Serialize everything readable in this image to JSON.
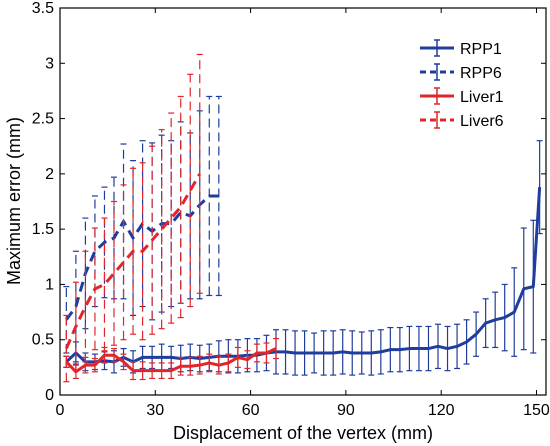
{
  "chart_data": {
    "type": "line",
    "xlabel": "Displacement of the vertex (mm)",
    "ylabel": "Maximum error (mm)",
    "xlim": [
      0,
      153
    ],
    "ylim": [
      0,
      3.5
    ],
    "xticks": [
      0,
      30,
      60,
      90,
      120,
      150
    ],
    "yticks": [
      0,
      0.5,
      1,
      1.5,
      2,
      2.5,
      3,
      3.5
    ],
    "xtick_labels": [
      "0",
      "30",
      "60",
      "90",
      "120",
      "150"
    ],
    "ytick_labels": [
      "0",
      "0.5",
      "1",
      "1.5",
      "2",
      "2.5",
      "3",
      "3.5"
    ],
    "grid": false,
    "legend_position": "top-right",
    "series": [
      {
        "name": "RPP1",
        "color": "#1f3d9c",
        "dash": "solid",
        "x": [
          2,
          5,
          8,
          11,
          14,
          17,
          20,
          23,
          26,
          29,
          32,
          35,
          38,
          41,
          44,
          47,
          50,
          53,
          56,
          59,
          62,
          65,
          68,
          71,
          74,
          77,
          80,
          83,
          86,
          89,
          92,
          95,
          98,
          101,
          104,
          107,
          110,
          113,
          116,
          119,
          122,
          125,
          128,
          131,
          134,
          137,
          140,
          143,
          146,
          149,
          151
        ],
        "y": [
          0.3,
          0.38,
          0.3,
          0.3,
          0.31,
          0.3,
          0.34,
          0.3,
          0.34,
          0.34,
          0.34,
          0.34,
          0.33,
          0.34,
          0.33,
          0.34,
          0.35,
          0.35,
          0.35,
          0.36,
          0.36,
          0.38,
          0.39,
          0.39,
          0.38,
          0.38,
          0.38,
          0.38,
          0.38,
          0.39,
          0.38,
          0.38,
          0.38,
          0.39,
          0.41,
          0.41,
          0.42,
          0.42,
          0.42,
          0.44,
          0.42,
          0.44,
          0.48,
          0.55,
          0.65,
          0.68,
          0.7,
          0.75,
          0.96,
          0.98,
          1.88
        ],
        "err": [
          0.05,
          0.1,
          0.08,
          0.07,
          0.08,
          0.1,
          0.08,
          0.1,
          0.1,
          0.1,
          0.12,
          0.1,
          0.12,
          0.12,
          0.12,
          0.12,
          0.14,
          0.15,
          0.15,
          0.15,
          0.15,
          0.16,
          0.2,
          0.2,
          0.2,
          0.2,
          0.18,
          0.2,
          0.2,
          0.2,
          0.2,
          0.19,
          0.2,
          0.2,
          0.2,
          0.2,
          0.2,
          0.2,
          0.2,
          0.2,
          0.2,
          0.2,
          0.2,
          0.2,
          0.22,
          0.25,
          0.3,
          0.4,
          0.55,
          0.6,
          0.42
        ]
      },
      {
        "name": "RPP6",
        "color": "#1f3d9c",
        "dash": "dashed",
        "x": [
          2,
          5,
          8,
          11,
          14,
          17,
          20,
          23,
          26,
          29,
          32,
          35,
          38,
          41,
          44,
          47,
          50
        ],
        "y": [
          0.68,
          0.8,
          1.1,
          1.3,
          1.38,
          1.42,
          1.57,
          1.42,
          1.55,
          1.48,
          1.55,
          1.55,
          1.65,
          1.62,
          1.72,
          1.8,
          1.8
        ],
        "err": [
          0.3,
          0.5,
          0.5,
          0.5,
          0.5,
          0.55,
          0.7,
          0.7,
          0.75,
          0.8,
          0.8,
          0.75,
          0.82,
          0.75,
          0.85,
          0.9,
          0.9
        ]
      },
      {
        "name": "Liver1",
        "color": "#e0262a",
        "dash": "solid",
        "x": [
          2,
          5,
          8,
          11,
          14,
          17,
          20,
          23,
          26,
          29,
          32,
          35,
          38,
          41,
          44,
          47,
          50,
          53,
          56,
          59,
          62,
          65,
          68
        ],
        "y": [
          0.3,
          0.21,
          0.27,
          0.27,
          0.36,
          0.36,
          0.3,
          0.22,
          0.22,
          0.22,
          0.22,
          0.22,
          0.26,
          0.26,
          0.27,
          0.29,
          0.27,
          0.29,
          0.34,
          0.32,
          0.38,
          0.38,
          0.42
        ],
        "err": [
          0.05,
          0.06,
          0.07,
          0.06,
          0.07,
          0.06,
          0.07,
          0.08,
          0.08,
          0.07,
          0.07,
          0.07,
          0.08,
          0.08,
          0.08,
          0.08,
          0.08,
          0.08,
          0.09,
          0.08,
          0.08,
          0.09,
          0.09
        ]
      },
      {
        "name": "Liver6",
        "color": "#e0262a",
        "dash": "dashed",
        "x": [
          2,
          5,
          8,
          11,
          14,
          17,
          20,
          23,
          26,
          29,
          32,
          35,
          38,
          41,
          44
        ],
        "y": [
          0.42,
          0.62,
          0.8,
          0.96,
          1.0,
          1.1,
          1.2,
          1.3,
          1.3,
          1.4,
          1.5,
          1.6,
          1.7,
          1.85,
          2.0
        ],
        "err": [
          0.3,
          0.4,
          0.5,
          0.55,
          0.6,
          0.65,
          0.7,
          0.75,
          0.8,
          0.85,
          0.9,
          0.95,
          1.0,
          1.05,
          1.08
        ]
      }
    ]
  }
}
